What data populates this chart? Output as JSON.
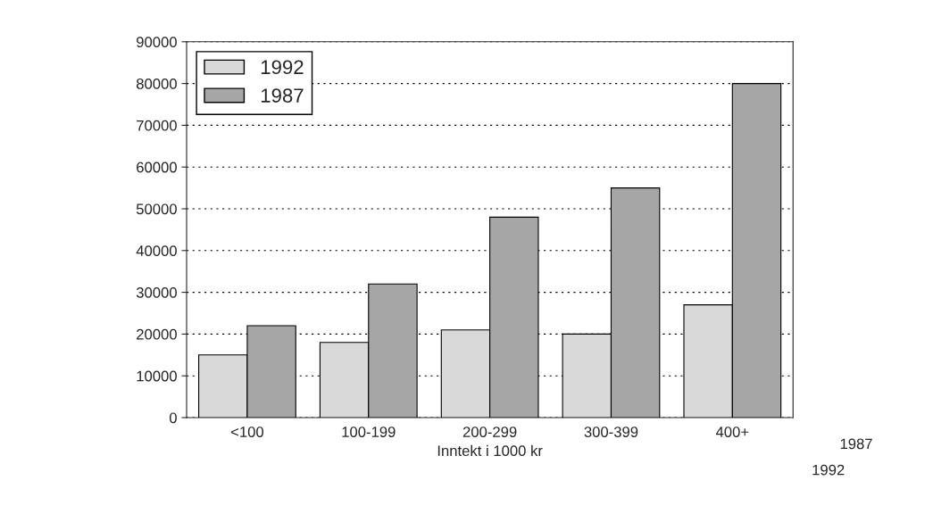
{
  "chart_data": {
    "type": "bar",
    "xlabel": "Inntekt i 1000 kr",
    "categories": [
      "<100",
      "100-199",
      "200-299",
      "300-399",
      "400+"
    ],
    "series": [
      {
        "name": "1992",
        "color": "#d9d9d9",
        "values": [
          15000,
          18000,
          21000,
          20000,
          27000
        ]
      },
      {
        "name": "1987",
        "color": "#a6a6a6",
        "values": [
          22000,
          32000,
          48000,
          55000,
          80000
        ]
      }
    ],
    "ylim": [
      0,
      90000
    ],
    "yticks": [
      0,
      10000,
      20000,
      30000,
      40000,
      50000,
      60000,
      70000,
      80000,
      90000
    ],
    "grid": "y",
    "legend": "top left",
    "annotations": [
      "1987",
      "1992"
    ]
  }
}
